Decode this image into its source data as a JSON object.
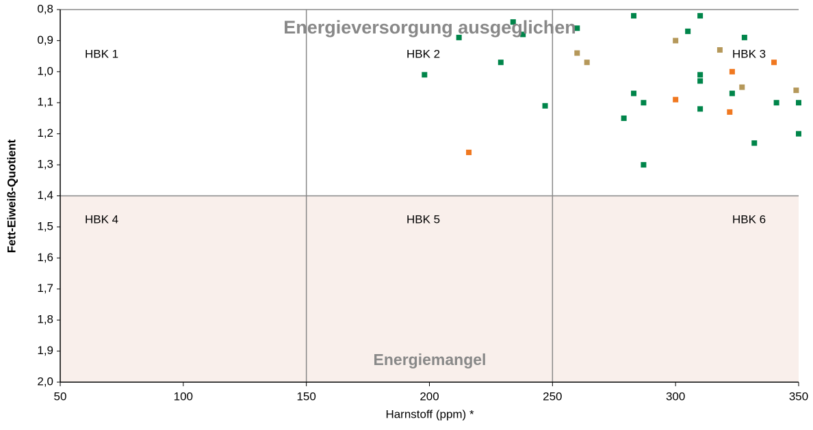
{
  "chart_data": {
    "type": "scatter",
    "xlabel": "Harnstoff (ppm) *",
    "ylabel": "Fett-Eiweiß-Quotient",
    "xlim": [
      50,
      350
    ],
    "xticks": [
      50,
      100,
      150,
      200,
      250,
      300,
      350
    ],
    "ylim": [
      0.8,
      2.0
    ],
    "y_inverted": true,
    "yticks": [
      {
        "value": 0.8,
        "label": "0,8"
      },
      {
        "value": 0.9,
        "label": "0,9"
      },
      {
        "value": 1.0,
        "label": "1,0"
      },
      {
        "value": 1.1,
        "label": "1,1"
      },
      {
        "value": 1.2,
        "label": "1,2"
      },
      {
        "value": 1.3,
        "label": "1,3"
      },
      {
        "value": 1.4,
        "label": "1,4"
      },
      {
        "value": 1.5,
        "label": "1,5"
      },
      {
        "value": 1.6,
        "label": "1,6"
      },
      {
        "value": 1.7,
        "label": "1,7"
      },
      {
        "value": 1.8,
        "label": "1,8"
      },
      {
        "value": 1.9,
        "label": "1,9"
      },
      {
        "value": 2.0,
        "label": "2,0"
      }
    ],
    "vlines": [
      150,
      250
    ],
    "hlines": [
      1.4
    ],
    "shaded_region": {
      "y": [
        1.4,
        2.0
      ],
      "color": "#f9efeb"
    },
    "annotations": [
      "Energieversorgung ausgeglichen",
      "Energiemangel"
    ],
    "regions": [
      "HBK 1",
      "HBK 2",
      "HBK 3",
      "HBK 4",
      "HBK 5",
      "HBK 6"
    ],
    "series": [
      {
        "color": "#00854a",
        "x": [
          198,
          212,
          229,
          234,
          238,
          247,
          260,
          283,
          310,
          305,
          328,
          310,
          310,
          283,
          287,
          323,
          310,
          341,
          350,
          279,
          350,
          332,
          287
        ],
        "values": [
          1.01,
          0.89,
          0.97,
          0.84,
          0.88,
          1.11,
          0.86,
          0.82,
          0.82,
          0.87,
          0.89,
          1.01,
          1.03,
          1.07,
          1.1,
          1.07,
          1.12,
          1.1,
          1.1,
          1.15,
          1.2,
          1.23,
          1.3
        ]
      },
      {
        "color": "#b5985a",
        "x": [
          260,
          264,
          300,
          318,
          327,
          349
        ],
        "values": [
          0.94,
          0.97,
          0.9,
          0.93,
          1.05,
          1.06
        ]
      },
      {
        "color": "#f07820",
        "x": [
          216,
          300,
          323,
          340,
          322
        ],
        "values": [
          1.26,
          1.09,
          1.0,
          0.97,
          1.13
        ]
      }
    ]
  }
}
